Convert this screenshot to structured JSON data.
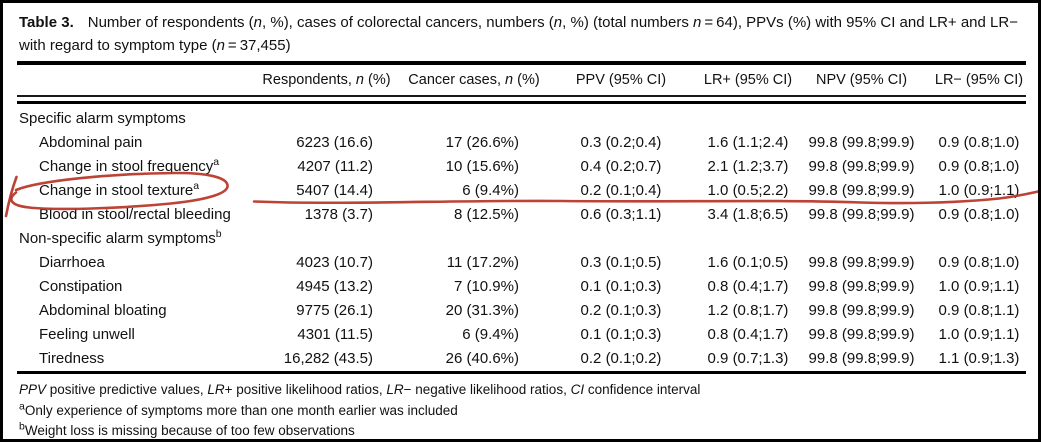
{
  "annotation": {
    "color": "#b8392a",
    "meaning": "hand-drawn circle around 'Change in stool texture' row label and underline across its values"
  },
  "title": {
    "label": "Table 3.",
    "text_html": "Number of respondents (<i>n</i>, %), cases of colorectal cancers, numbers (<i>n</i>, %) (total numbers <i>n</i>&thinsp;=&thinsp;64), PPVs (%) with 95% CI and LR+ and LR&minus; with regard to symptom type (<i>n</i>&thinsp;=&thinsp;37,455)"
  },
  "table": {
    "headers": [
      {
        "key": "symptom",
        "html": ""
      },
      {
        "key": "respondents",
        "html": "Respondents, <i>n</i> (%)"
      },
      {
        "key": "cancer",
        "html": "Cancer cases, <i>n</i> (%)"
      },
      {
        "key": "ppv",
        "html": "PPV (95% CI)"
      },
      {
        "key": "lr_plus",
        "html": "LR+ (95% CI)"
      },
      {
        "key": "npv",
        "html": "NPV (95% CI)"
      },
      {
        "key": "lr_minus",
        "html": "LR&minus; (95% CI)"
      }
    ],
    "rows": [
      {
        "type": "group",
        "label_html": "Specific alarm symptoms"
      },
      {
        "type": "data",
        "label_html": "Abdominal pain",
        "respondents": "6223 (16.6)",
        "cancer": "17 (26.6%)",
        "ppv": "0.3 (0.2;0.4)",
        "lr_plus": "1.6 (1.1;2.4)",
        "npv": "99.8 (99.8;99.9)",
        "lr_minus": "0.9 (0.8;1.0)"
      },
      {
        "type": "data",
        "label_html": "Change in stool frequency<sup>a</sup>",
        "respondents": "4207 (11.2)",
        "cancer": "10 (15.6%)",
        "ppv": "0.4 (0.2;0.7)",
        "lr_plus": "2.1 (1.2;3.7)",
        "npv": "99.8 (99.8;99.9)",
        "lr_minus": "0.9 (0.8;1.0)"
      },
      {
        "type": "data",
        "annotated": true,
        "label_html": "Change in stool texture<sup>a</sup>",
        "respondents": "5407 (14.4)",
        "cancer": "6 (9.4%)",
        "ppv": "0.2 (0.1;0.4)",
        "lr_plus": "1.0 (0.5;2.2)",
        "npv": "99.8 (99.8;99.9)",
        "lr_minus": "1.0 (0.9;1.1)"
      },
      {
        "type": "data",
        "label_html": "Blood in stool/rectal bleeding",
        "respondents": "1378 (3.7)",
        "cancer": "8 (12.5%)",
        "ppv": "0.6 (0.3;1.1)",
        "lr_plus": "3.4 (1.8;6.5)",
        "npv": "99.8 (99.8;99.9)",
        "lr_minus": "0.9 (0.8;1.0)"
      },
      {
        "type": "group",
        "label_html": "Non-specific alarm symptoms<sup>b</sup>"
      },
      {
        "type": "data",
        "label_html": "Diarrhoea",
        "respondents": "4023 (10.7)",
        "cancer": "11 (17.2%)",
        "ppv": "0.3 (0.1;0.5)",
        "lr_plus": "1.6 (0.1;0.5)",
        "npv": "99.8 (99.8;99.9)",
        "lr_minus": "0.9 (0.8;1.0)"
      },
      {
        "type": "data",
        "label_html": "Constipation",
        "respondents": "4945 (13.2)",
        "cancer": "7 (10.9%)",
        "ppv": "0.1 (0.1;0.3)",
        "lr_plus": "0.8 (0.4;1.7)",
        "npv": "99.8 (99.8;99.9)",
        "lr_minus": "1.0 (0.9;1.1)"
      },
      {
        "type": "data",
        "label_html": "Abdominal bloating",
        "respondents": "9775 (26.1)",
        "cancer": "20 (31.3%)",
        "ppv": "0.2 (0.1;0.3)",
        "lr_plus": "1.2 (0.8;1.7)",
        "npv": "99.8 (99.8;99.9)",
        "lr_minus": "0.9 (0.8;1.1)"
      },
      {
        "type": "data",
        "label_html": "Feeling unwell",
        "respondents": "4301 (11.5)",
        "cancer": "6 (9.4%)",
        "ppv": "0.1 (0.1;0.3)",
        "lr_plus": "0.8 (0.4;1.7)",
        "npv": "99.8 (99.8;99.9)",
        "lr_minus": "1.0 (0.9;1.1)"
      },
      {
        "type": "data",
        "label_html": "Tiredness",
        "respondents": "16,282 (43.5)",
        "cancer": "26 (40.6%)",
        "ppv": "0.2 (0.1;0.2)",
        "lr_plus": "0.9 (0.7;1.3)",
        "npv": "99.8 (99.8;99.9)",
        "lr_minus": "1.1 (0.9;1.3)"
      }
    ]
  },
  "footnotes": [
    {
      "html": "<i>PPV</i> positive predictive values, <i>LR</i>+ positive likelihood ratios, <i>LR</i>&minus; negative likelihood ratios, <i>CI</i> confidence interval"
    },
    {
      "html": "<sup>a</sup>Only experience of symptoms more than one month earlier was included"
    },
    {
      "html": "<sup>b</sup>Weight loss is missing because of too few observations"
    }
  ]
}
